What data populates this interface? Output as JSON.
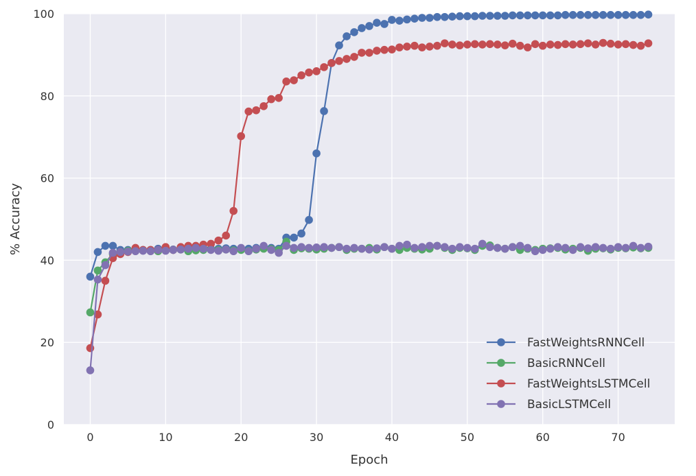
{
  "chart_data": {
    "type": "line",
    "xlabel": "Epoch",
    "ylabel": "% Accuracy",
    "xlim": [
      -3.5,
      77.5
    ],
    "ylim": [
      0,
      100
    ],
    "xticks": [
      0,
      10,
      20,
      30,
      40,
      50,
      60,
      70
    ],
    "yticks": [
      0,
      20,
      40,
      60,
      80,
      100
    ],
    "grid": true,
    "legend_position": "lower-right",
    "background": "#eaeaf2",
    "series": [
      {
        "name": "FastWeightsRNNCell",
        "color": "#4c72b0",
        "values": [
          36.0,
          42.0,
          43.5,
          43.5,
          42.5,
          42.5,
          42.5,
          42.5,
          42.5,
          42.8,
          42.8,
          42.6,
          42.8,
          43.0,
          42.8,
          43.0,
          42.8,
          42.8,
          42.9,
          42.8,
          42.9,
          42.8,
          43.0,
          43.2,
          43.0,
          42.8,
          45.5,
          45.5,
          46.5,
          49.8,
          66.0,
          76.3,
          88.0,
          92.3,
          94.5,
          95.5,
          96.5,
          97.0,
          97.8,
          97.5,
          98.5,
          98.3,
          98.6,
          98.8,
          99.0,
          99.0,
          99.2,
          99.2,
          99.3,
          99.4,
          99.4,
          99.4,
          99.5,
          99.5,
          99.5,
          99.5,
          99.6,
          99.6,
          99.6,
          99.6,
          99.6,
          99.6,
          99.6,
          99.7,
          99.7,
          99.7,
          99.7,
          99.7,
          99.7,
          99.7,
          99.7,
          99.7,
          99.7,
          99.7,
          99.8
        ]
      },
      {
        "name": "BasicRNNCell",
        "color": "#55a868",
        "values": [
          27.3,
          37.5,
          39.5,
          41.5,
          42.0,
          42.3,
          42.5,
          42.4,
          42.3,
          42.2,
          42.4,
          42.5,
          42.6,
          42.2,
          42.4,
          42.5,
          42.6,
          42.5,
          42.6,
          42.4,
          42.5,
          42.3,
          42.6,
          42.8,
          42.7,
          42.5,
          44.5,
          42.5,
          42.9,
          42.8,
          42.6,
          42.8,
          43.0,
          43.2,
          42.5,
          42.8,
          42.8,
          43.0,
          42.6,
          43.2,
          42.8,
          42.5,
          43.0,
          42.8,
          42.6,
          42.8,
          43.5,
          43.0,
          42.5,
          43.0,
          42.9,
          42.5,
          43.5,
          43.6,
          43.0,
          42.8,
          43.2,
          42.5,
          42.8,
          42.5,
          42.8,
          42.9,
          43.0,
          42.6,
          42.8,
          43.0,
          42.3,
          42.8,
          42.9,
          42.6,
          43.0,
          42.9,
          43.1,
          42.9,
          43.0
        ]
      },
      {
        "name": "FastWeightsLSTMCell",
        "color": "#c44e52",
        "values": [
          18.6,
          26.8,
          35.0,
          40.5,
          41.5,
          42.0,
          43.0,
          42.5,
          42.5,
          42.5,
          43.2,
          42.5,
          43.2,
          43.5,
          43.5,
          43.8,
          44.0,
          44.8,
          46.0,
          52.0,
          70.2,
          76.2,
          76.5,
          77.5,
          79.2,
          79.5,
          83.5,
          83.8,
          85.0,
          85.7,
          86.0,
          87.0,
          88.0,
          88.5,
          89.0,
          89.5,
          90.5,
          90.5,
          91.0,
          91.2,
          91.3,
          91.8,
          92.0,
          92.2,
          91.8,
          92.0,
          92.2,
          92.8,
          92.5,
          92.3,
          92.5,
          92.6,
          92.5,
          92.6,
          92.5,
          92.3,
          92.7,
          92.2,
          91.8,
          92.6,
          92.2,
          92.5,
          92.4,
          92.6,
          92.5,
          92.6,
          92.8,
          92.5,
          92.9,
          92.7,
          92.5,
          92.6,
          92.4,
          92.2,
          92.8
        ]
      },
      {
        "name": "BasicLSTMCell",
        "color": "#8172b2",
        "values": [
          13.2,
          35.3,
          38.8,
          41.8,
          42.0,
          42.1,
          42.2,
          42.3,
          42.2,
          42.5,
          42.3,
          42.5,
          42.6,
          42.8,
          43.0,
          42.8,
          42.5,
          42.3,
          42.6,
          42.2,
          43.0,
          42.2,
          42.8,
          43.5,
          42.5,
          41.8,
          43.5,
          43.0,
          43.2,
          43.0,
          43.1,
          43.2,
          43.0,
          43.2,
          42.8,
          43.0,
          42.8,
          42.6,
          42.9,
          43.2,
          42.8,
          43.5,
          43.8,
          43.0,
          43.2,
          43.5,
          43.5,
          43.2,
          42.8,
          43.2,
          43.0,
          42.8,
          44.0,
          43.2,
          43.0,
          42.8,
          43.2,
          43.5,
          43.0,
          42.2,
          42.5,
          42.8,
          43.2,
          43.0,
          42.5,
          43.2,
          42.9,
          43.2,
          43.0,
          42.8,
          43.2,
          43.0,
          43.5,
          43.0,
          43.3
        ]
      }
    ]
  }
}
